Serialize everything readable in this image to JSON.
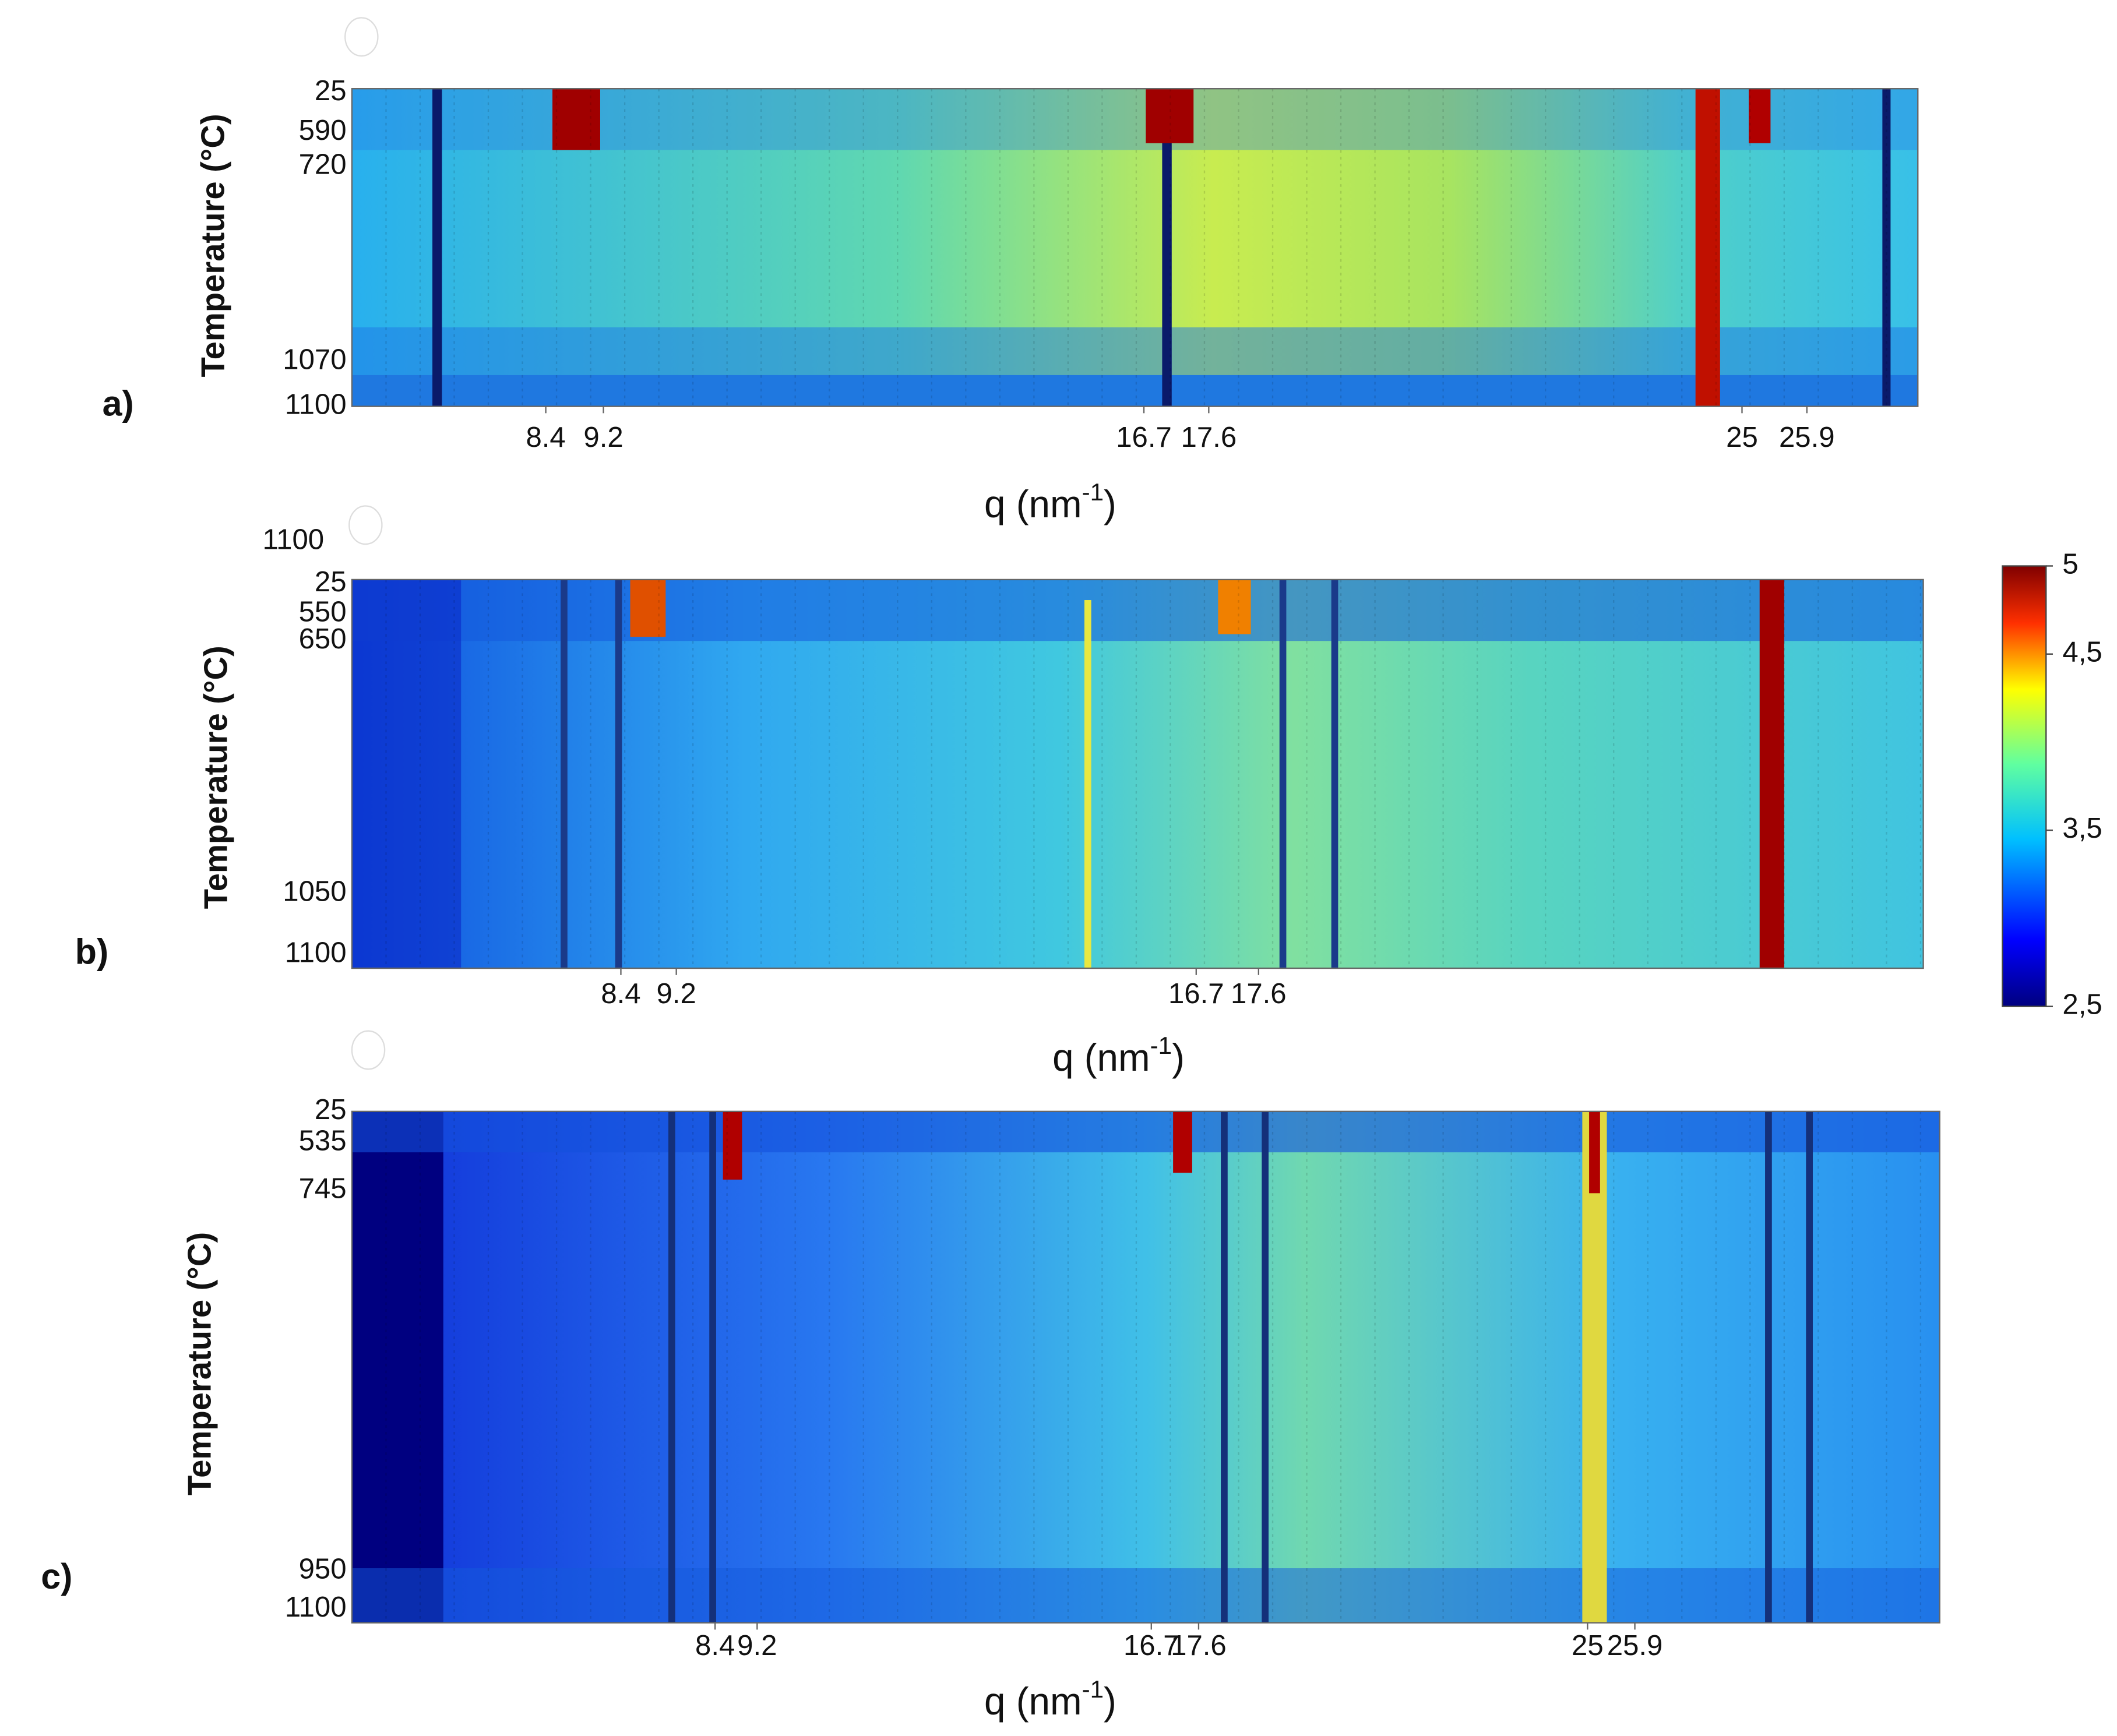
{
  "chart_data": [
    {
      "type": "heatmap",
      "panel": "a)",
      "ylabel": "Temperature (°C)",
      "yticks": [
        25,
        590,
        720,
        1070,
        1100
      ],
      "xlabel": [
        "q (nm",
        "-1",
        ")"
      ],
      "xlim": [
        5.71,
        27.44
      ],
      "xticks": [
        8.4,
        9.2,
        16.7,
        17.6,
        25,
        25.9
      ]
    },
    {
      "type": "heatmap",
      "panel": "b)",
      "ylabel": "Temperature (°C)",
      "yticks": [
        25,
        550,
        650,
        1050,
        1100
      ],
      "annotations": [
        "1100"
      ],
      "xlabel": [
        "q (nm",
        "-1",
        ")"
      ],
      "xlim": [
        4.52,
        27.19
      ],
      "xticks": [
        8.4,
        9.2,
        16.7,
        17.6
      ]
    },
    {
      "type": "heatmap",
      "panel": "c)",
      "ylabel": "Temperature (°C)",
      "yticks": [
        25,
        535,
        745,
        950,
        1100
      ],
      "xlabel": [
        "q (nm",
        "-1",
        ")"
      ],
      "xlim": [
        1.49,
        31.7
      ],
      "xticks": [
        8.4,
        9.2,
        16.7,
        17.6,
        25,
        25.9
      ]
    }
  ],
  "colorbar": {
    "lim": [
      2.5,
      5
    ],
    "ticks": [
      {
        "value": 2.5,
        "label": "2,5"
      },
      {
        "value": 3.5,
        "label": "3,5"
      },
      {
        "value": 4.5,
        "label": "4,5"
      },
      5
    ]
  }
}
